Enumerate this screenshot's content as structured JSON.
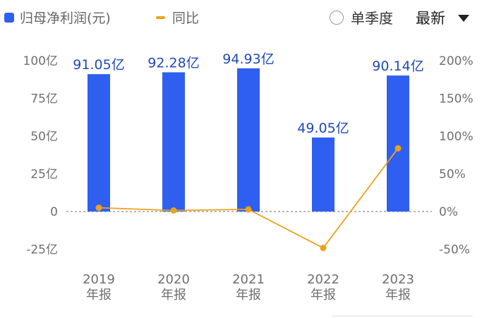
{
  "legend": {
    "bar_label": "归母净利润(元)",
    "line_label": "同比",
    "bar_color": "#2f5ff0",
    "line_color": "#eaa31b"
  },
  "controls": {
    "toggle_label": "单季度",
    "select_label": "最新"
  },
  "chart_data": {
    "type": "bar",
    "categories": [
      [
        "2019",
        "年报"
      ],
      [
        "2020",
        "年报"
      ],
      [
        "2021",
        "年报"
      ],
      [
        "2022",
        "年报"
      ],
      [
        "2023",
        "年报"
      ]
    ],
    "series": [
      {
        "name": "归母净利润(元)",
        "type": "bar",
        "axis": "left",
        "values": [
          91.05,
          92.28,
          94.93,
          49.05,
          90.14
        ],
        "labels": [
          "91.05亿",
          "92.28亿",
          "94.93亿",
          "49.05亿",
          "90.14亿"
        ],
        "color": "#2f5ff0"
      },
      {
        "name": "同比",
        "type": "line",
        "axis": "right",
        "values": [
          5,
          1.4,
          2.9,
          -48.3,
          83.8
        ],
        "color": "#eaa31b"
      }
    ],
    "y_left": {
      "ticks": [
        100,
        75,
        50,
        25,
        0,
        -25
      ],
      "tick_labels": [
        "100亿",
        "75亿",
        "50亿",
        "25亿",
        "0",
        "-25亿"
      ],
      "ylim": [
        -25,
        100
      ]
    },
    "y_right": {
      "ticks": [
        200,
        150,
        100,
        50,
        0,
        -50
      ],
      "tick_labels": [
        "200%",
        "150%",
        "100%",
        "50%",
        "0%",
        "-50%"
      ],
      "ylim": [
        -50,
        200
      ]
    },
    "zero_line": "dashed",
    "grid": false
  }
}
